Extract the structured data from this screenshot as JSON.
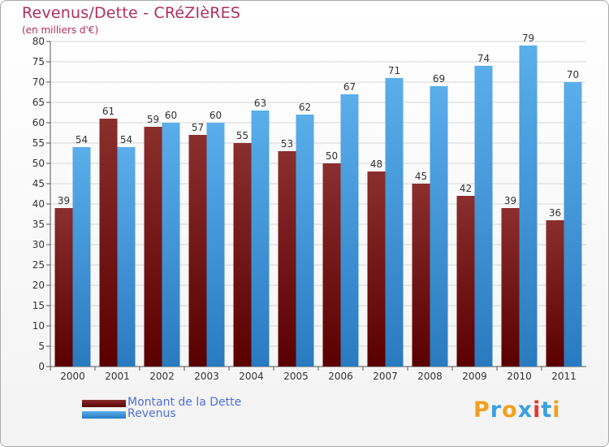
{
  "title": "Revenus/Dette - CRéZIèRES",
  "subtitle": "(en milliers d'€)",
  "colors": {
    "debt_top": "#8a2e2e",
    "debt_bottom": "#5a0000",
    "revenue_top": "#5aaeea",
    "revenue_bottom": "#2a7ac0",
    "title": "#b0305a",
    "legend_text": "#4e6fd8"
  },
  "legend": {
    "items": [
      {
        "label": "Montant de la Dette"
      },
      {
        "label": "Revenus"
      }
    ]
  },
  "logo": {
    "text": "Proxiti",
    "letter_colors": [
      "#f0a020",
      "#3aa0e0",
      "#f0a020",
      "#3aa0e0",
      "#e03a30",
      "#3aa0e0",
      "#f0a020"
    ]
  },
  "chart_data": {
    "type": "bar",
    "title": "Revenus/Dette - CRéZIèRES",
    "subtitle": "(en milliers d'€)",
    "categories": [
      "2000",
      "2001",
      "2002",
      "2003",
      "2004",
      "2005",
      "2006",
      "2007",
      "2008",
      "2009",
      "2010",
      "2011"
    ],
    "series": [
      {
        "name": "Montant de la Dette",
        "values": [
          39,
          61,
          59,
          57,
          55,
          53,
          50,
          48,
          45,
          42,
          39,
          36
        ]
      },
      {
        "name": "Revenus",
        "values": [
          54,
          54,
          60,
          60,
          63,
          62,
          67,
          71,
          69,
          74,
          79,
          70
        ]
      }
    ],
    "ylim": [
      0,
      80
    ],
    "yticks": [
      0,
      5,
      10,
      15,
      20,
      25,
      30,
      35,
      40,
      45,
      50,
      55,
      60,
      65,
      70,
      75,
      80
    ],
    "grid": true,
    "legend_position": "bottom-left"
  }
}
